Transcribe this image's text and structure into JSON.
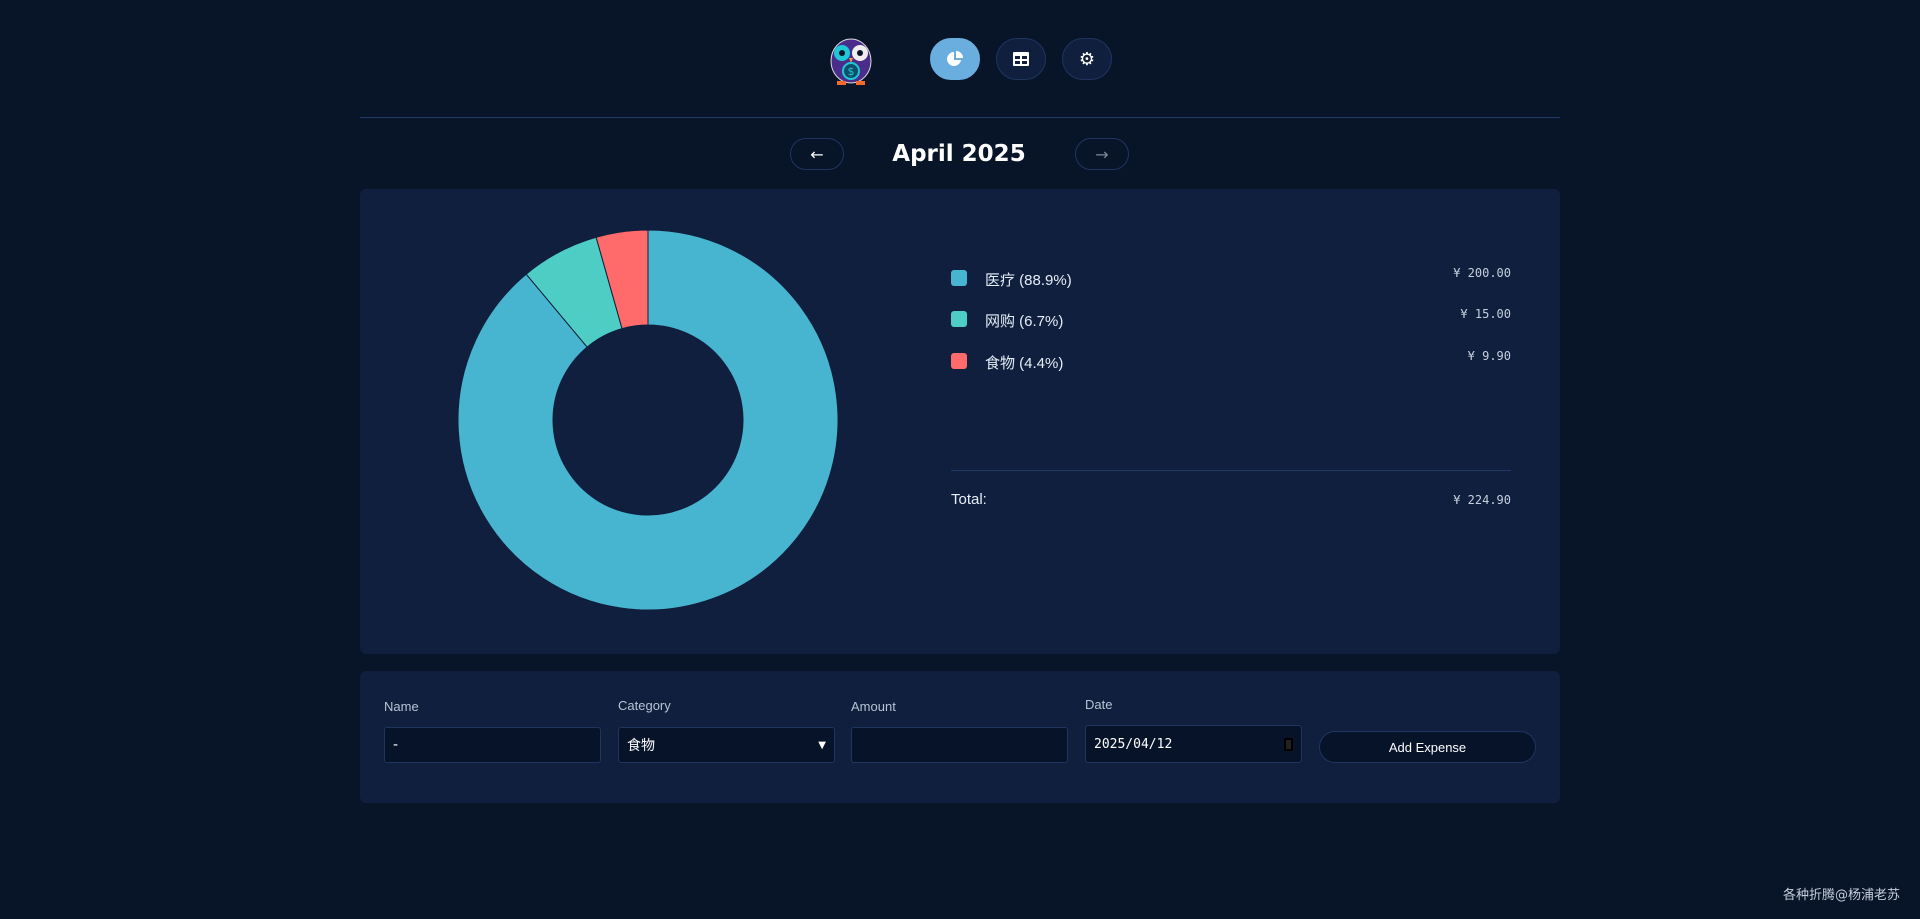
{
  "header": {
    "nav": [
      {
        "name": "chart-view",
        "icon": "pie-chart-icon",
        "active": true
      },
      {
        "name": "table-view",
        "icon": "table-icon",
        "active": false
      },
      {
        "name": "settings",
        "icon": "gear-icon",
        "active": false
      }
    ]
  },
  "month": {
    "title": "April 2025",
    "prev_icon": "arrow-left-icon",
    "next_icon": "arrow-right-icon",
    "prev": "←",
    "next": "→"
  },
  "chart_data": {
    "type": "pie",
    "variant": "donut",
    "categories": [
      "医疗",
      "网购",
      "食物"
    ],
    "values": [
      200.0,
      15.0,
      9.9
    ],
    "colors": [
      "#47b5d0",
      "#4ecdc4",
      "#ff6b6b"
    ]
  },
  "legend": {
    "items": [
      {
        "label": "医疗 (88.9%)",
        "amount": "¥ 200.00",
        "color": "#47b5d0"
      },
      {
        "label": "网购 (6.7%)",
        "amount": "¥ 15.00",
        "color": "#4ecdc4"
      },
      {
        "label": "食物 (4.4%)",
        "amount": "¥ 9.90",
        "color": "#ff6b6b"
      }
    ],
    "total_label": "Total:",
    "total_amount": "¥ 224.90"
  },
  "form": {
    "name_label": "Name",
    "name_value": "-",
    "category_label": "Category",
    "category_value": "食物",
    "amount_label": "Amount",
    "amount_value": "",
    "date_label": "Date",
    "date_value": "2025/04/12",
    "submit": "Add Expense"
  },
  "watermark": "各种折腾@杨浦老苏"
}
